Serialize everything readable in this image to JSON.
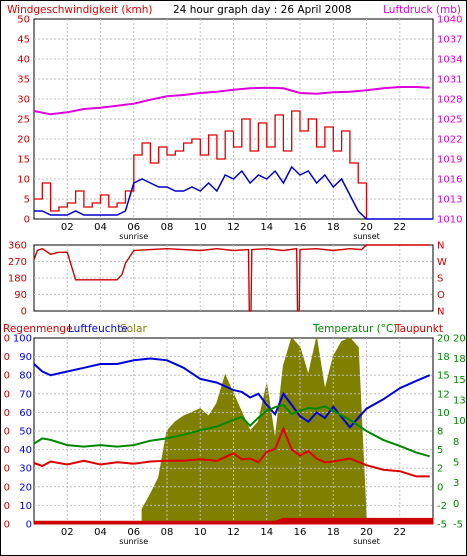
{
  "colors": {
    "wind": "#dd0000",
    "wind_avg": "#0000cc",
    "pressure": "#dd00dd",
    "direction": "#cc0000",
    "humidity": "#0000dd",
    "solar": "#808000",
    "temperature": "#008800",
    "dewpoint": "#dd0000",
    "rain": "#cc0000",
    "left_axis": "#cc0000",
    "axis_green": "#008800",
    "grid": "#c0c0c0"
  },
  "chart_data": [
    {
      "id": "wind",
      "type": "line",
      "header_left": "Windgeschwindigkeit (kmh)",
      "header_center": "24 hour graph day : 26 April 2008",
      "header_right": "Luftdruck (mb)",
      "x_ticks": [
        "02",
        "04",
        "06",
        "08",
        "10",
        "12",
        "14",
        "16",
        "18",
        "20",
        "22"
      ],
      "x_sublabels": [
        {
          "tick": "06",
          "text": "sunrise"
        },
        {
          "tick": "20",
          "text": "sunset"
        }
      ],
      "y_left_ticks": [
        "0",
        "5",
        "10",
        "15",
        "20",
        "25",
        "30",
        "35",
        "40",
        "45",
        "50"
      ],
      "y_right_ticks": [
        "1010",
        "1013",
        "1016",
        "1019",
        "1022",
        "1025",
        "1028",
        "1031",
        "1034",
        "1037",
        "1040"
      ],
      "ylim": [
        0,
        50
      ],
      "ylim_right": [
        1010,
        1040
      ],
      "series": [
        {
          "key": "gust",
          "x": [
            0,
            0.5,
            1,
            1.5,
            2,
            2.5,
            3,
            3.5,
            4,
            4.5,
            5,
            5.5,
            6,
            6.5,
            7,
            7.5,
            8,
            8.5,
            9,
            9.5,
            10,
            10.5,
            11,
            11.5,
            12,
            12.5,
            13,
            13.5,
            14,
            14.5,
            15,
            15.5,
            16,
            16.5,
            17,
            17.5,
            18,
            18.5,
            19,
            19.5,
            20
          ],
          "y": [
            5,
            9,
            2,
            3,
            4,
            7,
            3,
            4,
            6,
            3,
            4,
            7,
            16,
            19,
            14,
            18,
            16,
            17,
            19,
            20,
            16,
            21,
            15,
            22,
            18,
            25,
            17,
            24,
            18,
            26,
            17,
            27,
            22,
            25,
            18,
            23,
            17,
            22,
            14,
            9,
            0
          ]
        },
        {
          "key": "avg",
          "x": [
            0,
            0.5,
            1,
            1.5,
            2,
            2.5,
            3,
            3.5,
            4,
            4.5,
            5,
            5.5,
            6,
            6.5,
            7,
            7.5,
            8,
            8.5,
            9,
            9.5,
            10,
            10.5,
            11,
            11.5,
            12,
            12.5,
            13,
            13.5,
            14,
            14.5,
            15,
            15.5,
            16,
            16.5,
            17,
            17.5,
            18,
            18.5,
            19,
            19.5,
            20,
            21,
            22,
            23,
            24
          ],
          "y": [
            2,
            2,
            1,
            1,
            1,
            2,
            1,
            1,
            1,
            1,
            1,
            2,
            9,
            10,
            9,
            8,
            8,
            7,
            7,
            8,
            7,
            9,
            7,
            11,
            10,
            12,
            9,
            11,
            10,
            12,
            9,
            13,
            11,
            12,
            9,
            11,
            8,
            10,
            6,
            2,
            0,
            0,
            0,
            0,
            0
          ]
        },
        {
          "key": "pressure",
          "x": [
            0,
            1,
            2,
            3,
            4,
            5,
            6,
            7,
            8,
            9,
            10,
            11,
            12,
            13,
            14,
            15,
            16,
            17,
            18,
            19,
            20,
            21,
            22,
            23,
            23.8
          ],
          "y": [
            1026.2,
            1025.7,
            1026,
            1026.5,
            1026.7,
            1027,
            1027.3,
            1027.9,
            1028.4,
            1028.6,
            1028.9,
            1029.1,
            1029.4,
            1029.6,
            1029.7,
            1029.6,
            1028.9,
            1028.8,
            1029,
            1029.1,
            1029.3,
            1029.6,
            1029.8,
            1029.8,
            1029.7
          ]
        }
      ]
    },
    {
      "id": "direction",
      "type": "line",
      "y_left_ticks": [
        "0",
        "90",
        "180",
        "270",
        "360"
      ],
      "y_right_ticks": [
        "N",
        "O",
        "S",
        "W",
        "N"
      ],
      "ylim": [
        0,
        360
      ],
      "series": [
        {
          "key": "dir",
          "x": [
            0,
            0.2,
            0.5,
            1,
            1.5,
            2,
            2.5,
            3,
            3.5,
            4,
            4.5,
            5,
            5.3,
            5.5,
            6,
            7,
            8,
            9,
            10,
            11,
            12,
            12.9,
            12.95,
            13.05,
            13.1,
            14,
            15,
            15.8,
            15.85,
            15.95,
            16,
            17,
            18,
            19,
            19.7,
            20,
            21,
            22,
            23,
            23.8
          ],
          "y": [
            280,
            330,
            340,
            310,
            320,
            320,
            170,
            170,
            170,
            170,
            170,
            170,
            200,
            260,
            330,
            335,
            340,
            335,
            330,
            340,
            330,
            335,
            0,
            0,
            335,
            340,
            330,
            340,
            0,
            0,
            335,
            340,
            330,
            340,
            335,
            360,
            360,
            360,
            360,
            360
          ]
        }
      ]
    },
    {
      "id": "climate",
      "type": "line",
      "header_left_a": "Regenmenge",
      "header_left_b": "Luftfeuchte",
      "header_solar": "Solar",
      "header_right_a": "Temperatur (°C)",
      "header_right_b": "Taupunkt",
      "x_ticks": [
        "02",
        "04",
        "06",
        "08",
        "10",
        "12",
        "14",
        "16",
        "18",
        "20",
        "22"
      ],
      "x_sublabels": [
        {
          "tick": "06",
          "text": "sunrise"
        },
        {
          "tick": "20",
          "text": "sunset"
        }
      ],
      "y_left_rain_ticks": [
        "0",
        "0",
        "0",
        "0",
        "0",
        "0",
        "0",
        "0",
        "0",
        "0",
        "0"
      ],
      "y_left_hum_ticks": [
        "0",
        "10",
        "20",
        "30",
        "40",
        "50",
        "60",
        "70",
        "80",
        "90",
        "100"
      ],
      "y_right_temp_ticks": [
        "-5",
        "-2",
        "0",
        "2",
        "5",
        "8",
        "10",
        "12",
        "15",
        "18",
        "20"
      ],
      "y_right_dew_ticks": [
        "-5",
        "0",
        "3",
        "5",
        "8",
        "10",
        "13",
        "15",
        "18",
        "20"
      ],
      "ylim": [
        0,
        100
      ],
      "ylim_right": [
        -5,
        20
      ],
      "series": [
        {
          "key": "humidity",
          "x": [
            0,
            0.5,
            1,
            2,
            3,
            4,
            5,
            6,
            7,
            8,
            9,
            10,
            11,
            12,
            12.5,
            13,
            13.5,
            14,
            14.5,
            15,
            15.5,
            16,
            16.5,
            17,
            17.5,
            18,
            19,
            20,
            21,
            22,
            23,
            23.8
          ],
          "y": [
            86,
            82,
            80,
            82,
            84,
            86,
            86,
            88,
            89,
            88,
            84,
            78,
            76,
            72,
            71,
            68,
            70,
            64,
            59,
            70,
            64,
            58,
            55,
            60,
            57,
            63,
            52,
            62,
            67,
            73,
            77,
            80
          ]
        },
        {
          "key": "temperature",
          "x": [
            0,
            0.5,
            1,
            2,
            3,
            4,
            5,
            6,
            7,
            8,
            9,
            10,
            11,
            12,
            12.5,
            13,
            13.5,
            14,
            14.5,
            15,
            15.5,
            16,
            16.5,
            17,
            17.5,
            18,
            19,
            20,
            21,
            22,
            23,
            23.8
          ],
          "y": [
            5.8,
            6.5,
            6.3,
            5.6,
            5.4,
            5.6,
            5.4,
            5.6,
            6.2,
            6.5,
            7.0,
            7.6,
            8.1,
            9.0,
            9.4,
            8.2,
            9.3,
            10.2,
            10.7,
            11.0,
            9.8,
            10.2,
            10.6,
            10.5,
            10.8,
            10.2,
            9.0,
            7.5,
            6.3,
            5.5,
            4.6,
            4.1
          ]
        },
        {
          "key": "dewpoint",
          "x": [
            0,
            0.5,
            1,
            2,
            3,
            4,
            5,
            6,
            7,
            8,
            9,
            10,
            11,
            12,
            12.5,
            13,
            13.5,
            14,
            14.5,
            15,
            15.5,
            16,
            16.5,
            17,
            17.5,
            18,
            19,
            20,
            21,
            22,
            23,
            23.8
          ],
          "y": [
            3.2,
            2.8,
            3.4,
            3.0,
            3.5,
            3.0,
            3.3,
            3.1,
            3.4,
            3.5,
            3.5,
            3.7,
            3.5,
            4.5,
            3.7,
            3.8,
            3.3,
            4.7,
            5.1,
            7.8,
            5.0,
            4.2,
            4.8,
            3.8,
            3.3,
            3.4,
            3.8,
            2.9,
            2.3,
            2.1,
            1.4,
            1.4
          ]
        },
        {
          "key": "solar",
          "x": [
            6.5,
            7,
            7.5,
            8,
            8.5,
            9,
            9.5,
            10,
            10.5,
            11,
            11.5,
            12,
            12.5,
            13,
            13.5,
            14,
            14.5,
            15,
            15.5,
            16,
            16.5,
            17,
            17.5,
            18,
            18.5,
            19,
            19.5,
            20
          ],
          "y": [
            8,
            16,
            25,
            50,
            55,
            58,
            60,
            62,
            58,
            65,
            80,
            70,
            60,
            50,
            55,
            75,
            45,
            85,
            100,
            95,
            80,
            100,
            72,
            90,
            98,
            100,
            95,
            0
          ]
        },
        {
          "key": "rain",
          "x": [
            0,
            12,
            14.5,
            15,
            20,
            24
          ],
          "y": [
            1.5,
            1.5,
            1.5,
            3,
            3,
            3
          ]
        }
      ]
    }
  ]
}
